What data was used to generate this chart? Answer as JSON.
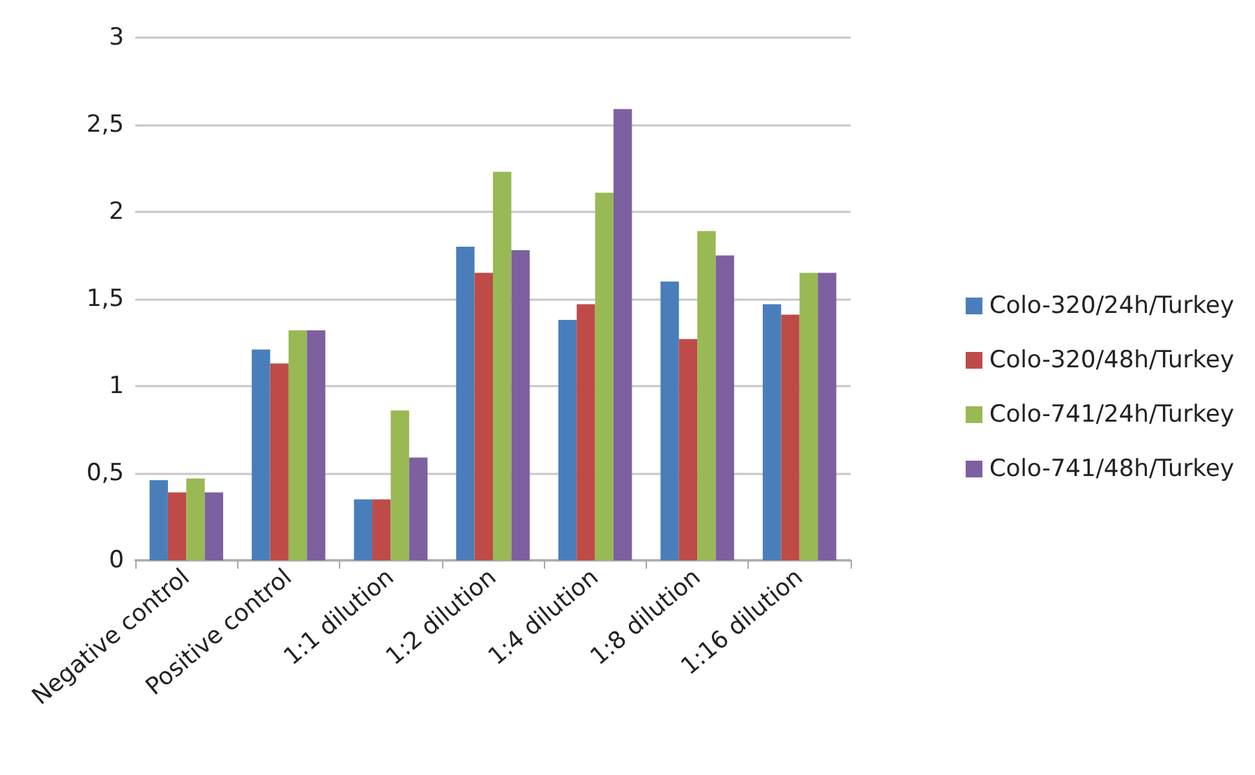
{
  "chart_data": {
    "type": "bar",
    "categories": [
      "Negative control",
      "Positive control",
      "1:1 dilution",
      "1:2 dilution",
      "1:4 dilution",
      "1:8 dilution",
      "1:16 dilution"
    ],
    "series": [
      {
        "name": "Colo-320/24h/Turkey",
        "color": "#4a7ebb",
        "values": [
          0.46,
          1.21,
          0.35,
          1.8,
          1.38,
          1.6,
          1.47
        ]
      },
      {
        "name": "Colo-320/48h/Turkey",
        "color": "#be4b48",
        "values": [
          0.39,
          1.13,
          0.35,
          1.65,
          1.47,
          1.27,
          1.41
        ]
      },
      {
        "name": "Colo-741/24h/Turkey",
        "color": "#98b954",
        "values": [
          0.47,
          1.32,
          0.86,
          2.23,
          2.11,
          1.89,
          1.65
        ]
      },
      {
        "name": "Colo-741/48h/Turkey",
        "color": "#7d60a0",
        "values": [
          0.39,
          1.32,
          0.59,
          1.78,
          2.59,
          1.75,
          1.65
        ]
      }
    ],
    "ylim": [
      0,
      3
    ],
    "yticks": [
      0,
      {
        "value": 0.5,
        "label": "0,5"
      },
      1,
      {
        "value": 1.5,
        "label": "1,5"
      },
      2,
      {
        "value": 2.5,
        "label": "2,5"
      },
      3
    ],
    "grid": "y",
    "legend": "right"
  }
}
